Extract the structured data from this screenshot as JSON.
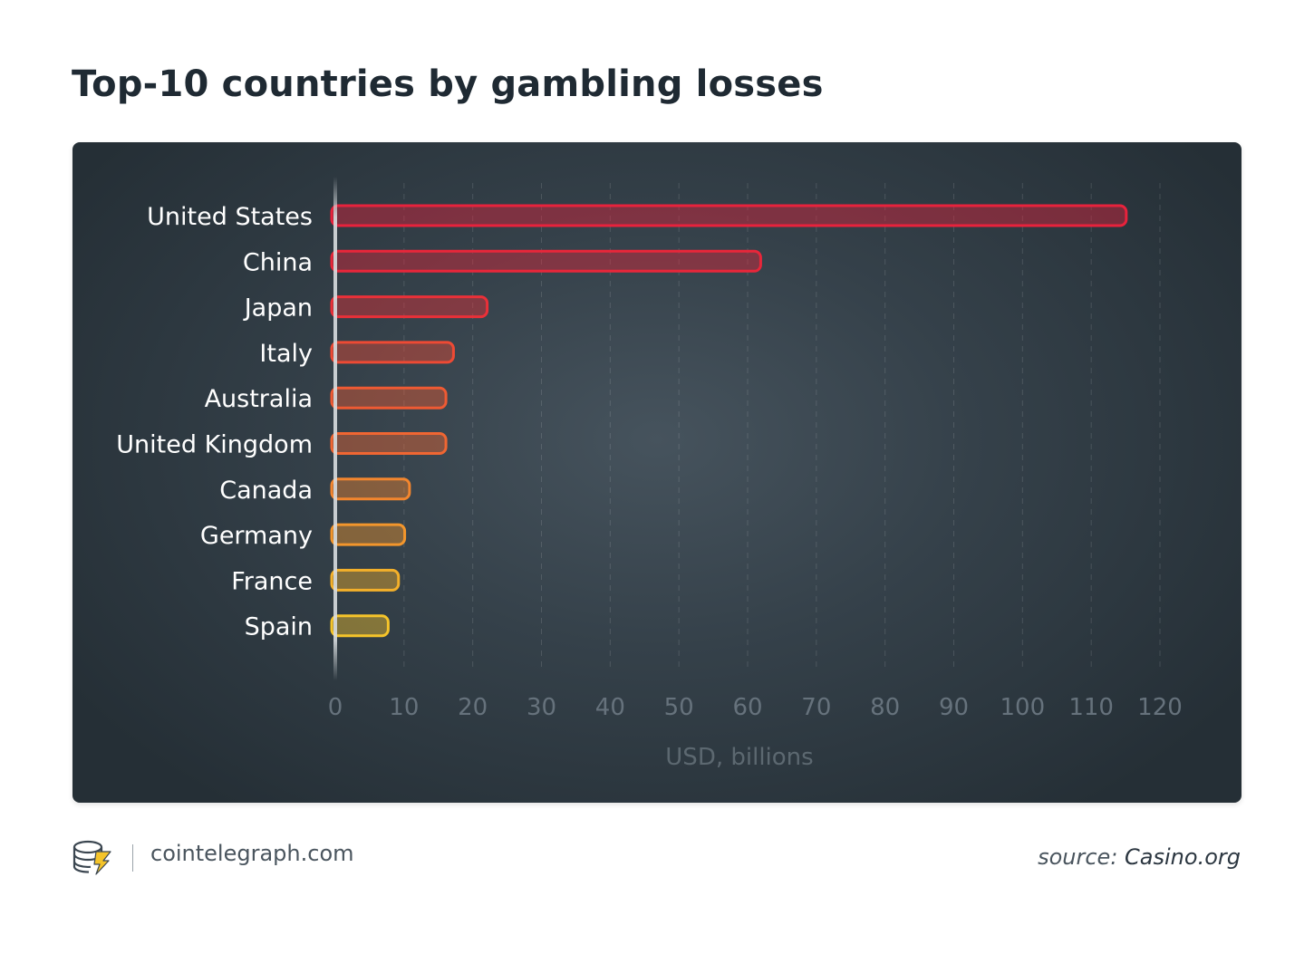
{
  "title": "Top-10 countries by gambling losses",
  "chart_data": {
    "type": "bar",
    "orientation": "horizontal",
    "categories": [
      "United States",
      "China",
      "Japan",
      "Italy",
      "Australia",
      "United Kingdom",
      "Canada",
      "Germany",
      "France",
      "Spain"
    ],
    "values": [
      115.1,
      61.9,
      22.1,
      17.2,
      16.1,
      16.1,
      10.8,
      10.1,
      9.2,
      7.7
    ],
    "xlim": [
      0,
      120
    ],
    "xticks": [
      0,
      10,
      20,
      30,
      40,
      50,
      60,
      70,
      80,
      90,
      100,
      110,
      120
    ],
    "xlabel": "USD, billions",
    "ylabel": "",
    "grid": "vertical dashed",
    "bar_colors": [
      "#e8223c",
      "#e8263a",
      "#ea3038",
      "#ee4a34",
      "#ef5a33",
      "#f06632",
      "#f3862e",
      "#f3962c",
      "#f4b02a",
      "#f5c42a"
    ]
  },
  "footer": {
    "site": "cointelegraph.com",
    "source_prefix": "source:",
    "source_name": "Casino.org"
  }
}
